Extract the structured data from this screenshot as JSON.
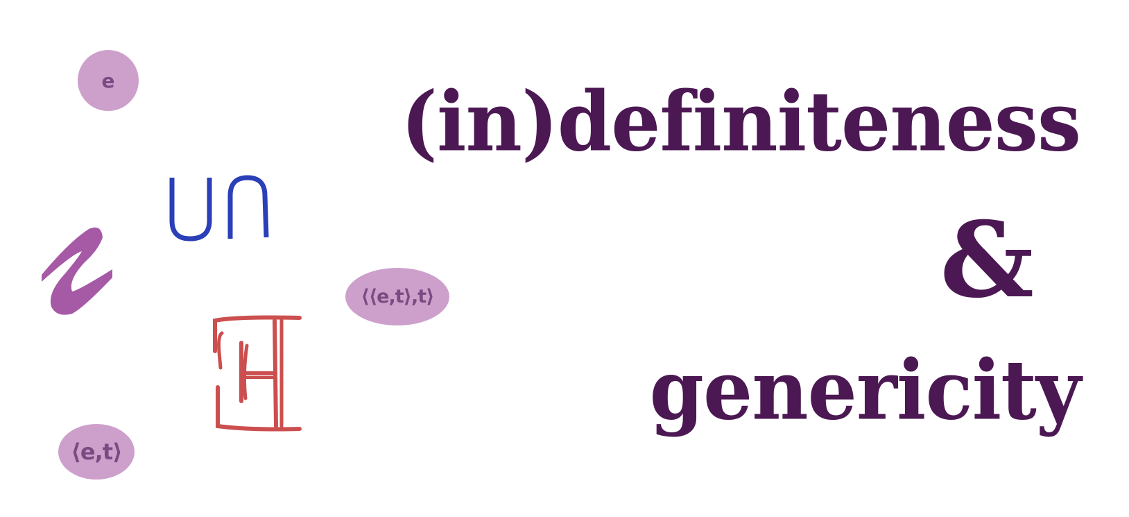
{
  "title": {
    "line1": "(in)definiteness",
    "ampersand": "&",
    "line2": "genericity"
  },
  "bubbles": {
    "entity": "e",
    "quantifier_type": "⟨⟨e,t⟩,t⟩",
    "predicate_type": "⟨e,t⟩"
  },
  "icons": {
    "union_intersection": "union-intersection-icon",
    "lambda": "lambda-squiggle-icon",
    "existential": "exists-quantifier-icon"
  },
  "colors": {
    "title": "#4c1853",
    "bubble_fill": "#cda0cc",
    "bubble_text": "#7a4a82",
    "union_stroke": "#2a3fb8",
    "lambda_fill": "#a65aa6",
    "exists_stroke": "#cc4f4f"
  }
}
